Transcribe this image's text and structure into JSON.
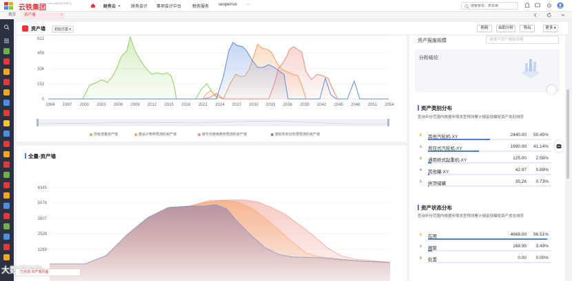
{
  "header": {
    "logo_text": "云铁集团",
    "logo_sub": "CHINA 中铁云智 智慧产业",
    "nav": [
      "财务云",
      "财务会计",
      "事项会计中台",
      "税务服务",
      "seoperrun",
      "···"
    ],
    "search_placeholder": "搜索菜单、表单等"
  },
  "tabs": {
    "home": "首页",
    "active": "资产墙",
    "close": "×"
  },
  "page": {
    "title": "资产墙",
    "plan": "初始方案",
    "buttons": [
      "刷新",
      "自助分析",
      "导出",
      "更多"
    ]
  },
  "top_chart": {
    "x_ticks": [
      "1994",
      "1997",
      "2000",
      "2003",
      "2006",
      "2009",
      "2012",
      "2015",
      "2018",
      "2021",
      "2024",
      "2027",
      "2030",
      "2033",
      "2036",
      "2039",
      "2042",
      "2045",
      "2048",
      "2051",
      "2054"
    ],
    "y_ticks": [
      "612",
      "459",
      "306",
      "153",
      "0"
    ],
    "legend": [
      "现有增量资产墙",
      "按设计寿命预测的资产墙",
      "按平均使用寿命预测的资产墙",
      "按财务折旧年限预测的资产墙"
    ],
    "colors": [
      "#8ed05a",
      "#f5a05a",
      "#ef8a7a",
      "#5b8be0"
    ]
  },
  "bottom_chart": {
    "title": "全量-资产墙",
    "y_ticks": [
      "6345",
      "5076",
      "3807",
      "2538",
      "1269"
    ]
  },
  "right_panel": {
    "scrap_label": "资产报废规模",
    "scrap_placeholder": "请填写资产报废规模",
    "analysis_label": "分析结论",
    "category": {
      "title": "资产类别分布",
      "desc": "查询年份范围内根据年限类型预测累计报废规模按资产类别排序",
      "rows": [
        {
          "rank": "1",
          "name": "其他汽轮机-XY",
          "value": "2440.00",
          "pct": "50.45%",
          "fill": 0.5045
        },
        {
          "rank": "2",
          "name": "背压式汽轮机-XY",
          "value": "1990.00",
          "pct": "41.14%",
          "fill": 0.4114
        },
        {
          "rank": "3",
          "name": "通用桥式起重机-XY",
          "value": "125.00",
          "pct": "2.58%",
          "fill": 0.0258
        },
        {
          "rank": "4",
          "name": "其他罐-XY",
          "value": "42.97",
          "pct": "0.89%",
          "fill": 0.0089
        },
        {
          "rank": "5",
          "name": "拱顶储罐",
          "value": "35.26",
          "pct": "0.73%",
          "fill": 0.0073
        }
      ]
    },
    "status": {
      "title": "资产状态分布",
      "desc": "查询年份范围内根据年限类型预测累计报废规模按资产状态排序",
      "rows": [
        {
          "rank": "1",
          "name": "在用",
          "value": "4668.00",
          "pct": "96.51%",
          "fill": 0.9651
        },
        {
          "rank": "2",
          "name": "报废",
          "value": "168.95",
          "pct": "3.49%",
          "fill": 0.0349
        },
        {
          "rank": "3",
          "name": "处置",
          "value": "0.00",
          "pct": "0.00%",
          "fill": 0
        }
      ]
    }
  },
  "watermark": "大数据智能",
  "bottom_tag": "已完成  资产墙页面",
  "accent": "#e4393c"
}
